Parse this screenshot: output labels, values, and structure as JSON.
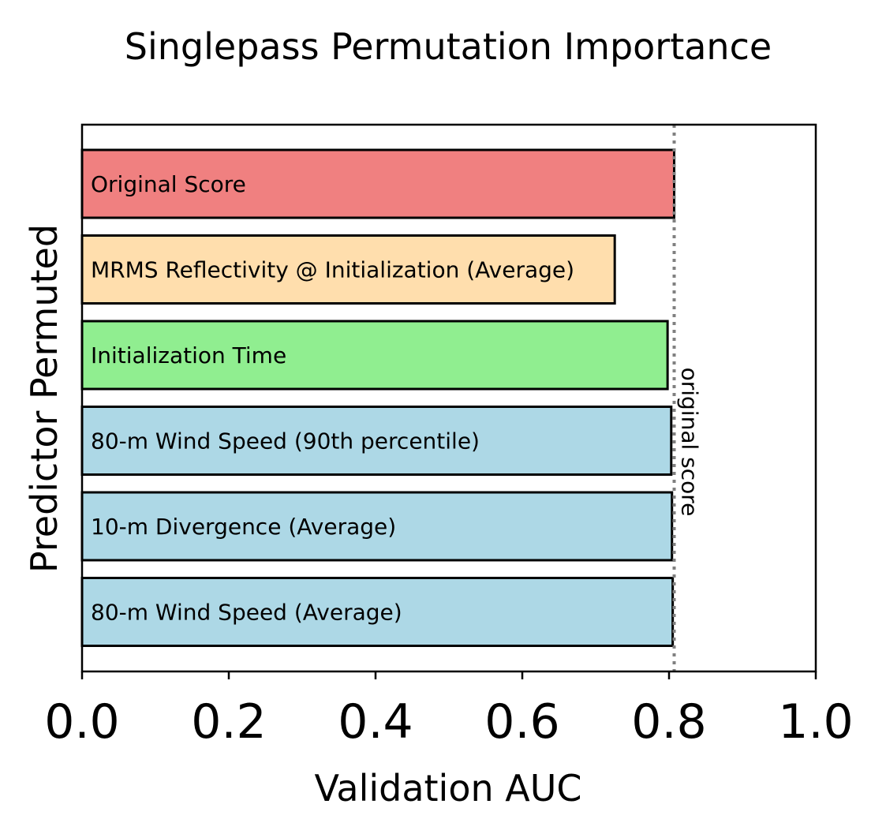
{
  "chart_data": {
    "type": "bar",
    "orientation": "horizontal",
    "title": "Singlepass Permutation Importance",
    "xlabel": "Validation AUC",
    "ylabel": "Predictor Permuted",
    "xlim": [
      0.0,
      1.0
    ],
    "xticks": [
      "0.0",
      "0.2",
      "0.4",
      "0.6",
      "0.8",
      "1.0"
    ],
    "grid": false,
    "categories": [
      "Original Score",
      "MRMS Reflectivity @ Initialization (Average)",
      "Initialization Time",
      "80-m Wind Speed (90th percentile)",
      "10-m Divergence (Average)",
      "80-m Wind Speed (Average)"
    ],
    "values": [
      0.807,
      0.726,
      0.798,
      0.803,
      0.804,
      0.805
    ],
    "colors": [
      "#f08080",
      "#ffdead",
      "#90ee90",
      "#add8e6",
      "#add8e6",
      "#add8e6"
    ],
    "reference_line": {
      "value": 0.807,
      "label": "original score",
      "color": "#808080",
      "style": "dotted"
    }
  }
}
